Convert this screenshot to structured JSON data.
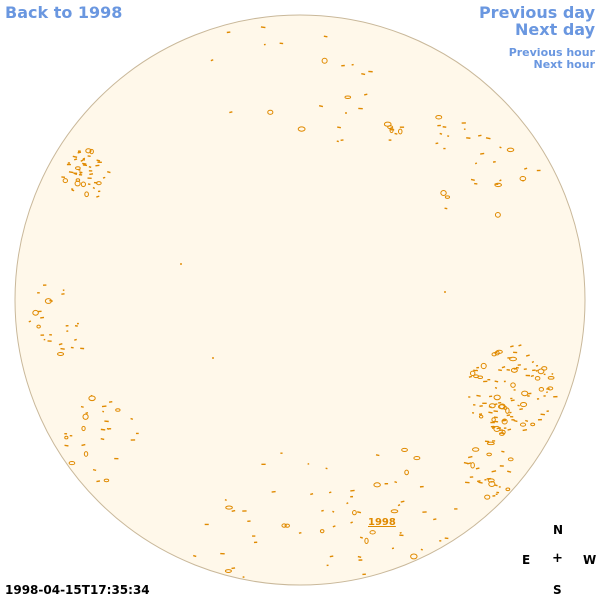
{
  "nav": {
    "back_label": "Back to 1998",
    "prev_day_label": "Previous day",
    "next_day_label": "Next day",
    "prev_hour_label": "Previous hour",
    "next_hour_label": "Next hour"
  },
  "compass": {
    "north": "N",
    "east": "E",
    "center": "+",
    "west": "W",
    "south": "S"
  },
  "timestamp": "1998-04-15T17:35:34",
  "year_link": "1998",
  "colors": {
    "link": "#6a97e0",
    "disk_fill": "#fff8ea",
    "disk_stroke": "#c9b89a",
    "feature": "#e08a00"
  }
}
